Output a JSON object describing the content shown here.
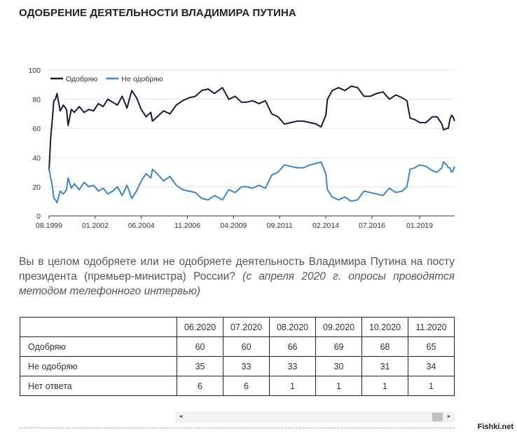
{
  "page": {
    "title": "ОДОБРЕНИЕ ДЕЯТЕЛЬНОСТИ ВЛАДИМИРА ПУТИНА",
    "question": "Вы в целом одобряете или не одобряете деятельность Владимира Путина на посту президента (премьер-министра) России?",
    "question_note": "(с апреля 2020 г. опросы проводятся методом телефонного интервью)",
    "watermark": "Fishki.net"
  },
  "chart_data": {
    "type": "line",
    "title": "",
    "xlabel": "",
    "ylabel": "",
    "ylim": [
      0,
      100
    ],
    "yticks": [
      0,
      20,
      40,
      60,
      80,
      100
    ],
    "xlim": [
      "1999-08",
      "2020-11"
    ],
    "xticks": [
      "08.1999",
      "01.2002",
      "06.2004",
      "11.2006",
      "04.2009",
      "09.2011",
      "02.2014",
      "07.2016",
      "01.2019"
    ],
    "grid": true,
    "legend": "top-left",
    "series": [
      {
        "name": "Одобряю",
        "color": "#151a3d",
        "points": [
          [
            "1999-08",
            31
          ],
          [
            "1999-09",
            53
          ],
          [
            "1999-10",
            65
          ],
          [
            "1999-11",
            79
          ],
          [
            "1999-12",
            80
          ],
          [
            "2000-01",
            84
          ],
          [
            "2000-03",
            72
          ],
          [
            "2000-05",
            76
          ],
          [
            "2000-07",
            73
          ],
          [
            "2000-08",
            62
          ],
          [
            "2000-10",
            73
          ],
          [
            "2000-12",
            71
          ],
          [
            "2001-03",
            75
          ],
          [
            "2001-06",
            71
          ],
          [
            "2001-09",
            73
          ],
          [
            "2001-12",
            72
          ],
          [
            "2002-03",
            77
          ],
          [
            "2002-06",
            75
          ],
          [
            "2002-09",
            80
          ],
          [
            "2002-12",
            78
          ],
          [
            "2003-03",
            76
          ],
          [
            "2003-06",
            82
          ],
          [
            "2003-09",
            74
          ],
          [
            "2003-12",
            86
          ],
          [
            "2004-03",
            81
          ],
          [
            "2004-06",
            73
          ],
          [
            "2004-09",
            68
          ],
          [
            "2004-12",
            71
          ],
          [
            "2005-01",
            65
          ],
          [
            "2005-04",
            68
          ],
          [
            "2005-08",
            72
          ],
          [
            "2005-12",
            70
          ],
          [
            "2006-04",
            76
          ],
          [
            "2006-08",
            79
          ],
          [
            "2006-12",
            81
          ],
          [
            "2007-04",
            82
          ],
          [
            "2007-08",
            86
          ],
          [
            "2007-12",
            87
          ],
          [
            "2008-04",
            84
          ],
          [
            "2008-09",
            88
          ],
          [
            "2009-01",
            80
          ],
          [
            "2009-05",
            82
          ],
          [
            "2009-09",
            78
          ],
          [
            "2009-12",
            78
          ],
          [
            "2010-04",
            79
          ],
          [
            "2010-08",
            77
          ],
          [
            "2010-12",
            79
          ],
          [
            "2011-04",
            70
          ],
          [
            "2011-08",
            68
          ],
          [
            "2011-12",
            63
          ],
          [
            "2012-04",
            64
          ],
          [
            "2012-08",
            65
          ],
          [
            "2012-12",
            65
          ],
          [
            "2013-04",
            64
          ],
          [
            "2013-08",
            63
          ],
          [
            "2013-11",
            61
          ],
          [
            "2014-02",
            69
          ],
          [
            "2014-03",
            80
          ],
          [
            "2014-06",
            86
          ],
          [
            "2014-10",
            88
          ],
          [
            "2015-02",
            86
          ],
          [
            "2015-06",
            89
          ],
          [
            "2015-10",
            88
          ],
          [
            "2016-02",
            82
          ],
          [
            "2016-06",
            82
          ],
          [
            "2016-10",
            84
          ],
          [
            "2017-02",
            85
          ],
          [
            "2017-06",
            80
          ],
          [
            "2017-10",
            83
          ],
          [
            "2018-02",
            81
          ],
          [
            "2018-05",
            79
          ],
          [
            "2018-07",
            67
          ],
          [
            "2018-10",
            66
          ],
          [
            "2019-01",
            64
          ],
          [
            "2019-05",
            64
          ],
          [
            "2019-09",
            68
          ],
          [
            "2019-12",
            68
          ],
          [
            "2020-03",
            63
          ],
          [
            "2020-04",
            59
          ],
          [
            "2020-06",
            60
          ],
          [
            "2020-07",
            60
          ],
          [
            "2020-08",
            66
          ],
          [
            "2020-09",
            69
          ],
          [
            "2020-10",
            68
          ],
          [
            "2020-11",
            65
          ]
        ]
      },
      {
        "name": "Не одобряю",
        "color": "#3d86c6",
        "points": [
          [
            "1999-08",
            33
          ],
          [
            "1999-09",
            26
          ],
          [
            "1999-10",
            21
          ],
          [
            "1999-11",
            12
          ],
          [
            "1999-12",
            11
          ],
          [
            "2000-01",
            9
          ],
          [
            "2000-03",
            17
          ],
          [
            "2000-05",
            15
          ],
          [
            "2000-07",
            18
          ],
          [
            "2000-08",
            26
          ],
          [
            "2000-10",
            19
          ],
          [
            "2000-12",
            22
          ],
          [
            "2001-03",
            18
          ],
          [
            "2001-06",
            23
          ],
          [
            "2001-09",
            20
          ],
          [
            "2001-12",
            21
          ],
          [
            "2002-03",
            17
          ],
          [
            "2002-06",
            19
          ],
          [
            "2002-09",
            15
          ],
          [
            "2002-12",
            17
          ],
          [
            "2003-03",
            20
          ],
          [
            "2003-06",
            14
          ],
          [
            "2003-09",
            21
          ],
          [
            "2003-12",
            12
          ],
          [
            "2004-03",
            17
          ],
          [
            "2004-06",
            24
          ],
          [
            "2004-09",
            29
          ],
          [
            "2004-12",
            26
          ],
          [
            "2005-01",
            32
          ],
          [
            "2005-04",
            29
          ],
          [
            "2005-08",
            24
          ],
          [
            "2005-12",
            27
          ],
          [
            "2006-04",
            21
          ],
          [
            "2006-08",
            18
          ],
          [
            "2006-12",
            17
          ],
          [
            "2007-04",
            16
          ],
          [
            "2007-08",
            12
          ],
          [
            "2007-12",
            11
          ],
          [
            "2008-04",
            14
          ],
          [
            "2008-09",
            11
          ],
          [
            "2009-01",
            18
          ],
          [
            "2009-05",
            16
          ],
          [
            "2009-09",
            20
          ],
          [
            "2009-12",
            20
          ],
          [
            "2010-04",
            19
          ],
          [
            "2010-08",
            21
          ],
          [
            "2010-12",
            19
          ],
          [
            "2011-04",
            28
          ],
          [
            "2011-08",
            30
          ],
          [
            "2011-12",
            35
          ],
          [
            "2012-04",
            34
          ],
          [
            "2012-08",
            33
          ],
          [
            "2012-12",
            33
          ],
          [
            "2013-04",
            35
          ],
          [
            "2013-08",
            36
          ],
          [
            "2013-11",
            37
          ],
          [
            "2014-02",
            29
          ],
          [
            "2014-03",
            18
          ],
          [
            "2014-06",
            13
          ],
          [
            "2014-10",
            11
          ],
          [
            "2015-02",
            13
          ],
          [
            "2015-06",
            10
          ],
          [
            "2015-10",
            11
          ],
          [
            "2016-02",
            17
          ],
          [
            "2016-06",
            16
          ],
          [
            "2016-10",
            15
          ],
          [
            "2017-02",
            14
          ],
          [
            "2017-06",
            19
          ],
          [
            "2017-10",
            16
          ],
          [
            "2018-02",
            17
          ],
          [
            "2018-05",
            20
          ],
          [
            "2018-07",
            32
          ],
          [
            "2018-10",
            33
          ],
          [
            "2019-01",
            35
          ],
          [
            "2019-05",
            34
          ],
          [
            "2019-09",
            31
          ],
          [
            "2019-12",
            30
          ],
          [
            "2020-03",
            33
          ],
          [
            "2020-04",
            37
          ],
          [
            "2020-06",
            35
          ],
          [
            "2020-07",
            33
          ],
          [
            "2020-08",
            33
          ],
          [
            "2020-09",
            30
          ],
          [
            "2020-10",
            31
          ],
          [
            "2020-11",
            34
          ]
        ]
      }
    ]
  },
  "table": {
    "months": [
      "06.2020",
      "07.2020",
      "08.2020",
      "09.2020",
      "10.2020",
      "11.2020"
    ],
    "rows": [
      {
        "label": "Одобряю",
        "values": [
          "60",
          "60",
          "66",
          "69",
          "68",
          "65"
        ]
      },
      {
        "label": "Не одобряю",
        "values": [
          "35",
          "33",
          "33",
          "30",
          "31",
          "34"
        ]
      },
      {
        "label": "Нет ответа",
        "values": [
          "6",
          "6",
          "1",
          "1",
          "1",
          "1"
        ]
      }
    ]
  },
  "scrollbar": {
    "left_arrow": "◄",
    "right_arrow": "►"
  }
}
